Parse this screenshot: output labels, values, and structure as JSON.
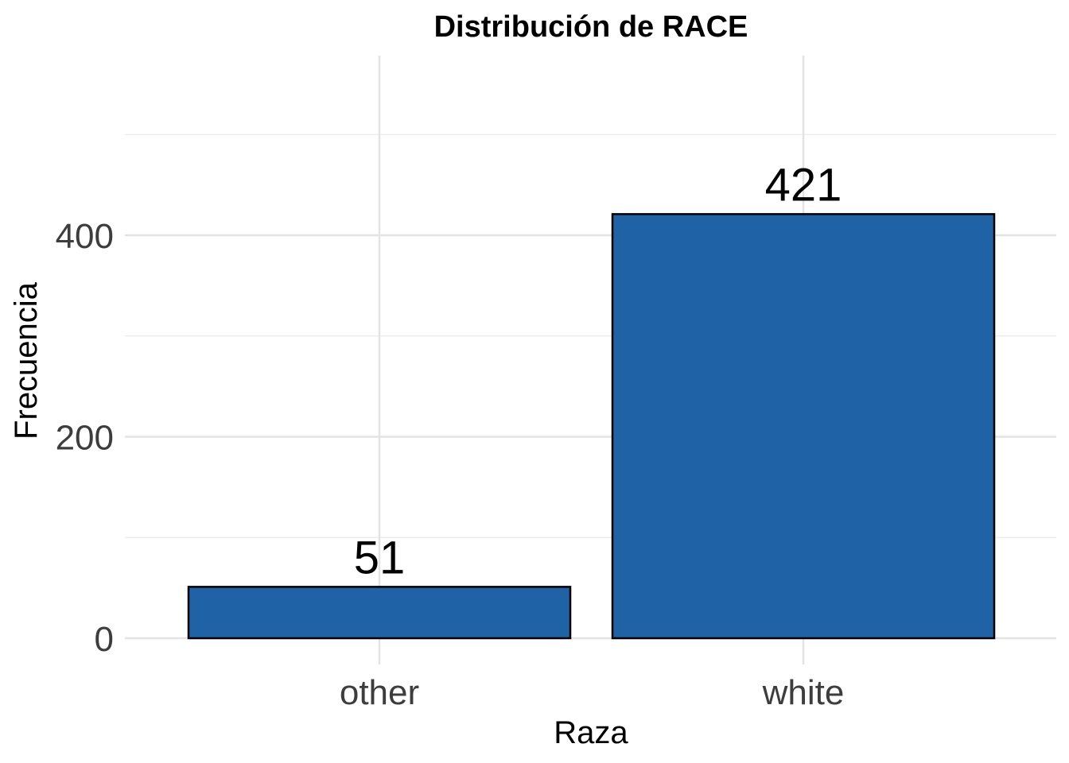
{
  "chart_data": {
    "type": "bar",
    "title": "Distribución de RACE",
    "xlabel": "Raza",
    "ylabel": "Frecuencia",
    "categories": [
      "other",
      "white"
    ],
    "values": [
      51,
      421
    ],
    "data_labels": [
      "51",
      "421"
    ],
    "yticks": [
      0,
      200,
      400
    ],
    "ytick_labels": [
      "0",
      "200",
      "400"
    ],
    "ylim": [
      0,
      530
    ],
    "grid": true,
    "legend": "none",
    "bar_color": "#1f63a6",
    "bar_edge_color": "#000000"
  }
}
